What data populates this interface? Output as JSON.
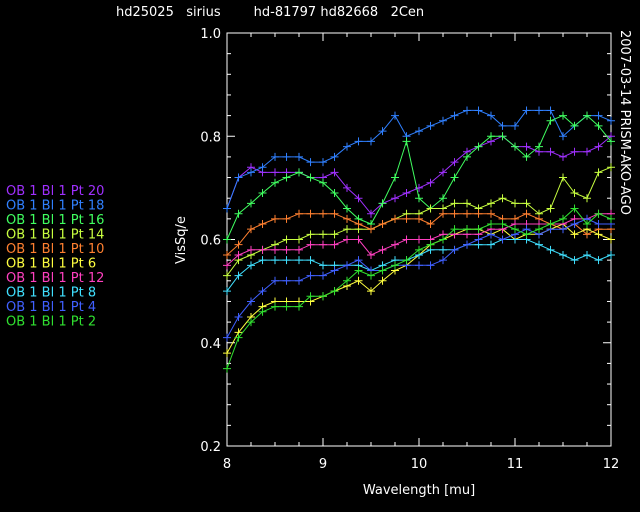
{
  "header": {
    "text": "hd25025   sirius        hd-81797 hd82668   2Cen"
  },
  "side_label": "2007-03-14 PRISM-AKO-AGO",
  "chart_data": {
    "type": "line",
    "title": "",
    "xlabel": "Wavelength [mu]",
    "ylabel": "VisSq/e",
    "xlim": [
      8,
      12
    ],
    "ylim": [
      0.2,
      1.0
    ],
    "x_ticks": [
      8,
      9,
      10,
      11,
      12
    ],
    "y_ticks": [
      0.2,
      0.4,
      0.6,
      0.8,
      1.0
    ],
    "x_tick_labels": [
      "8",
      "9",
      "10",
      "11",
      "12"
    ],
    "y_tick_labels": [
      "0.2",
      "0.4",
      "0.6",
      "0.8",
      "1.0"
    ],
    "grid": false,
    "legend_position": "left",
    "marker": "plus",
    "x": [
      8.0,
      8.12,
      8.25,
      8.37,
      8.5,
      8.62,
      8.75,
      8.87,
      9.0,
      9.12,
      9.25,
      9.37,
      9.5,
      9.62,
      9.75,
      9.87,
      10.0,
      10.12,
      10.25,
      10.37,
      10.5,
      10.62,
      10.75,
      10.87,
      11.0,
      11.12,
      11.25,
      11.37,
      11.5,
      11.62,
      11.75,
      11.87,
      12.0
    ],
    "series": [
      {
        "name": "OB 1 Bl 1 Pt 20",
        "color": "#a030ff",
        "values": [
          0.66,
          0.72,
          0.74,
          0.73,
          0.73,
          0.73,
          0.73,
          0.72,
          0.72,
          0.73,
          0.7,
          0.68,
          0.65,
          0.67,
          0.68,
          0.69,
          0.7,
          0.71,
          0.73,
          0.75,
          0.77,
          0.78,
          0.79,
          0.8,
          0.78,
          0.78,
          0.77,
          0.77,
          0.76,
          0.77,
          0.77,
          0.78,
          0.8
        ]
      },
      {
        "name": "OB 1 Bl 1 Pt 18",
        "color": "#3080ff",
        "values": [
          0.66,
          0.72,
          0.73,
          0.74,
          0.76,
          0.76,
          0.76,
          0.75,
          0.75,
          0.76,
          0.78,
          0.79,
          0.79,
          0.81,
          0.84,
          0.8,
          0.81,
          0.82,
          0.83,
          0.84,
          0.85,
          0.85,
          0.84,
          0.82,
          0.82,
          0.85,
          0.85,
          0.85,
          0.8,
          0.82,
          0.84,
          0.84,
          0.83
        ]
      },
      {
        "name": "OB 1 Bl 1 Pt 16",
        "color": "#40ff60",
        "values": [
          0.6,
          0.65,
          0.67,
          0.69,
          0.71,
          0.72,
          0.73,
          0.72,
          0.71,
          0.69,
          0.66,
          0.64,
          0.63,
          0.67,
          0.72,
          0.79,
          0.68,
          0.66,
          0.68,
          0.72,
          0.76,
          0.78,
          0.8,
          0.8,
          0.78,
          0.76,
          0.78,
          0.83,
          0.84,
          0.82,
          0.84,
          0.82,
          0.79
        ]
      },
      {
        "name": "OB 1 Bl 1 Pt 14",
        "color": "#c8ff40",
        "values": [
          0.53,
          0.56,
          0.57,
          0.58,
          0.59,
          0.6,
          0.6,
          0.61,
          0.61,
          0.61,
          0.62,
          0.62,
          0.62,
          0.63,
          0.64,
          0.65,
          0.65,
          0.66,
          0.66,
          0.67,
          0.67,
          0.66,
          0.67,
          0.68,
          0.67,
          0.67,
          0.65,
          0.66,
          0.72,
          0.69,
          0.68,
          0.73,
          0.74
        ]
      },
      {
        "name": "OB 1 Bl 1 Pt 10",
        "color": "#ff8030",
        "values": [
          0.57,
          0.59,
          0.62,
          0.63,
          0.64,
          0.64,
          0.65,
          0.65,
          0.65,
          0.65,
          0.64,
          0.63,
          0.62,
          0.63,
          0.64,
          0.64,
          0.64,
          0.63,
          0.65,
          0.65,
          0.65,
          0.65,
          0.65,
          0.64,
          0.64,
          0.65,
          0.64,
          0.63,
          0.62,
          0.63,
          0.61,
          0.62,
          0.62
        ]
      },
      {
        "name": "OB 1 Bl 1 Pt 6",
        "color": "#ffff40",
        "values": [
          0.38,
          0.42,
          0.45,
          0.47,
          0.48,
          0.48,
          0.48,
          0.48,
          0.49,
          0.5,
          0.51,
          0.52,
          0.5,
          0.52,
          0.54,
          0.55,
          0.57,
          0.59,
          0.6,
          0.61,
          0.62,
          0.62,
          0.61,
          0.62,
          0.6,
          0.61,
          0.61,
          0.62,
          0.63,
          0.61,
          0.62,
          0.61,
          0.6
        ]
      },
      {
        "name": "OB 1 Bl 1 Pt 12",
        "color": "#ff40c0",
        "values": [
          0.55,
          0.57,
          0.58,
          0.58,
          0.58,
          0.58,
          0.58,
          0.59,
          0.59,
          0.59,
          0.6,
          0.6,
          0.57,
          0.58,
          0.59,
          0.6,
          0.6,
          0.6,
          0.61,
          0.61,
          0.61,
          0.61,
          0.62,
          0.62,
          0.63,
          0.63,
          0.63,
          0.63,
          0.63,
          0.64,
          0.64,
          0.65,
          0.65
        ]
      },
      {
        "name": "OB 1 Bl 1 Pt 8",
        "color": "#40e0ff",
        "values": [
          0.5,
          0.53,
          0.55,
          0.56,
          0.56,
          0.56,
          0.56,
          0.56,
          0.55,
          0.55,
          0.55,
          0.55,
          0.54,
          0.55,
          0.56,
          0.56,
          0.57,
          0.58,
          0.58,
          0.58,
          0.59,
          0.59,
          0.59,
          0.6,
          0.6,
          0.6,
          0.59,
          0.58,
          0.57,
          0.56,
          0.57,
          0.56,
          0.57
        ]
      },
      {
        "name": "OB 1 Bl 1 Pt 4",
        "color": "#4060ff",
        "values": [
          0.41,
          0.45,
          0.48,
          0.5,
          0.52,
          0.52,
          0.52,
          0.53,
          0.53,
          0.54,
          0.55,
          0.56,
          0.54,
          0.54,
          0.55,
          0.55,
          0.55,
          0.55,
          0.56,
          0.58,
          0.59,
          0.6,
          0.61,
          0.6,
          0.61,
          0.62,
          0.61,
          0.62,
          0.62,
          0.63,
          0.64,
          0.63,
          0.63
        ]
      },
      {
        "name": "OB 1 Bl 1 Pt 2",
        "color": "#30e030",
        "values": [
          0.35,
          0.41,
          0.44,
          0.46,
          0.47,
          0.47,
          0.47,
          0.49,
          0.49,
          0.5,
          0.52,
          0.54,
          0.53,
          0.54,
          0.55,
          0.56,
          0.58,
          0.59,
          0.6,
          0.62,
          0.62,
          0.62,
          0.63,
          0.63,
          0.62,
          0.61,
          0.62,
          0.63,
          0.64,
          0.66,
          0.63,
          0.65,
          0.64
        ]
      }
    ]
  }
}
